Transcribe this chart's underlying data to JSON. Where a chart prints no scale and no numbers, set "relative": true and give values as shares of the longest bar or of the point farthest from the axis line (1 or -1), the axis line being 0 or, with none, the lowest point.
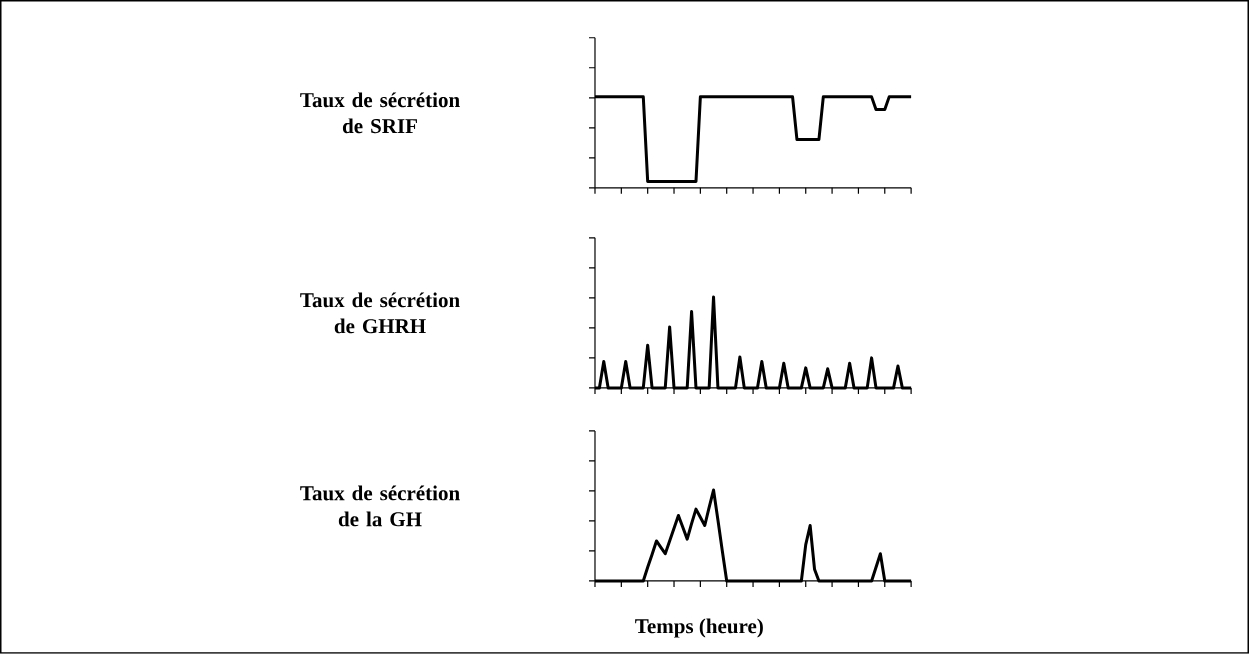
{
  "chart_data": [
    {
      "type": "line",
      "ylabel": "Taux de sécrétion de SRIF",
      "relative": true,
      "color": "#000000",
      "marker": "none",
      "line_style": "solid",
      "categories": [
        null,
        null,
        null,
        null,
        null,
        null,
        null,
        null,
        null,
        null,
        null,
        null,
        null,
        null,
        null,
        null,
        null,
        null,
        null,
        null,
        null,
        null,
        null,
        null,
        null,
        null,
        null,
        null,
        null,
        null,
        null,
        null,
        null,
        null,
        null,
        null,
        null,
        null,
        null,
        null,
        null,
        null,
        null,
        null,
        null,
        null,
        null,
        null,
        null,
        null,
        null,
        null,
        null,
        null,
        null,
        null,
        null,
        null,
        null,
        null,
        null,
        null,
        null,
        null,
        null,
        null,
        null,
        null,
        null,
        null,
        null,
        null,
        null
      ],
      "values": [
        1,
        1,
        1,
        1,
        1,
        1,
        1,
        1,
        1,
        1,
        1,
        1,
        0.07,
        0.07,
        0.07,
        0.07,
        0.07,
        0.07,
        0.07,
        0.07,
        0.07,
        0.07,
        0.07,
        0.07,
        1,
        1,
        1,
        1,
        1,
        1,
        1,
        1,
        1,
        1,
        1,
        1,
        1,
        1,
        1,
        1,
        1,
        1,
        1,
        1,
        1,
        1,
        0.53,
        0.53,
        0.53,
        0.53,
        0.53,
        0.53,
        1,
        1,
        1,
        1,
        1,
        1,
        1,
        1,
        1,
        1,
        1,
        1,
        0.86,
        0.86,
        0.86,
        1,
        1,
        1,
        1,
        1,
        1
      ]
    },
    {
      "type": "line",
      "ylabel": "Taux de sécrétion de GHRH",
      "relative": true,
      "color": "#000000",
      "marker": "none",
      "line_style": "solid",
      "categories": [
        null,
        null,
        null,
        null,
        null,
        null,
        null,
        null,
        null,
        null,
        null,
        null,
        null,
        null,
        null,
        null,
        null,
        null,
        null,
        null,
        null,
        null,
        null,
        null,
        null,
        null,
        null,
        null,
        null,
        null,
        null,
        null,
        null,
        null,
        null,
        null,
        null,
        null,
        null,
        null,
        null,
        null,
        null,
        null,
        null,
        null,
        null,
        null,
        null,
        null,
        null,
        null,
        null,
        null,
        null,
        null,
        null,
        null,
        null,
        null,
        null,
        null,
        null,
        null,
        null,
        null,
        null,
        null,
        null,
        null,
        null,
        null,
        null
      ],
      "values": [
        0,
        0,
        0.29,
        0,
        0,
        0,
        0,
        0.29,
        0,
        0,
        0,
        0,
        0.47,
        0,
        0,
        0,
        0,
        0.67,
        0,
        0,
        0,
        0,
        0.84,
        0,
        0,
        0,
        0,
        1,
        0,
        0,
        0,
        0,
        0,
        0.34,
        0,
        0,
        0,
        0,
        0.29,
        0,
        0,
        0,
        0,
        0.27,
        0,
        0,
        0,
        0,
        0.22,
        0,
        0,
        0,
        0,
        0.21,
        0,
        0,
        0,
        0,
        0.27,
        0,
        0,
        0,
        0,
        0.33,
        0,
        0,
        0,
        0,
        0,
        0.24,
        0,
        0,
        0
      ]
    },
    {
      "type": "line",
      "ylabel": "Taux de sécrétion de la GH",
      "xlabel": "Temps (heure)",
      "relative": true,
      "color": "#000000",
      "marker": "none",
      "line_style": "solid",
      "categories": [
        null,
        null,
        null,
        null,
        null,
        null,
        null,
        null,
        null,
        null,
        null,
        null,
        null,
        null,
        null,
        null,
        null,
        null,
        null,
        null,
        null,
        null,
        null,
        null,
        null,
        null,
        null,
        null,
        null,
        null,
        null,
        null,
        null,
        null,
        null,
        null,
        null,
        null,
        null,
        null,
        null,
        null,
        null,
        null,
        null,
        null,
        null,
        null,
        null,
        null,
        null,
        null,
        null,
        null,
        null,
        null,
        null,
        null,
        null,
        null,
        null,
        null,
        null,
        null,
        null,
        null,
        null,
        null,
        null,
        null,
        null,
        null,
        null
      ],
      "values": [
        0,
        0,
        0,
        0,
        0,
        0,
        0,
        0,
        0,
        0,
        0,
        0,
        0.15,
        0.29,
        0.44,
        0.37,
        0.3,
        0.44,
        0.58,
        0.72,
        0.59,
        0.46,
        0.63,
        0.79,
        0.7,
        0.61,
        0.81,
        1,
        0.67,
        0.33,
        0,
        0,
        0,
        0,
        0,
        0,
        0,
        0,
        0,
        0,
        0,
        0,
        0,
        0,
        0,
        0,
        0,
        0,
        0.4,
        0.61,
        0.13,
        0,
        0,
        0,
        0,
        0,
        0,
        0,
        0,
        0,
        0,
        0,
        0,
        0,
        0.15,
        0.3,
        0,
        0,
        0,
        0,
        0,
        0,
        0
      ]
    }
  ]
}
